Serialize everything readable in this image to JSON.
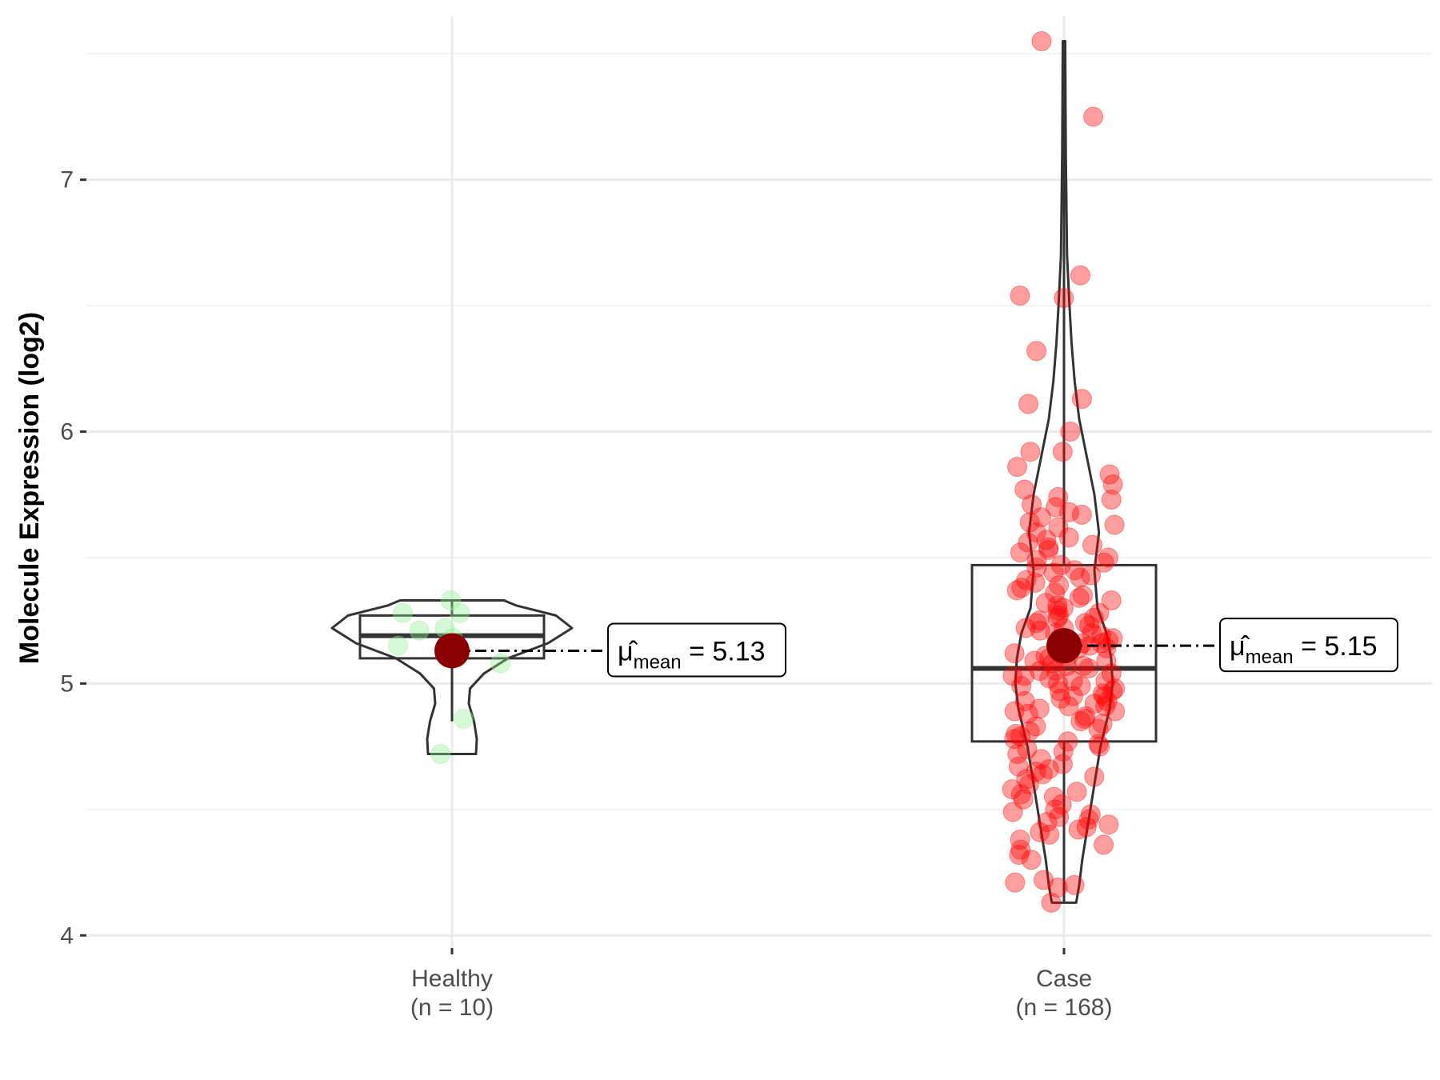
{
  "chart_data": {
    "type": "violin",
    "ylabel": "Molecule Expression (log2)",
    "ylim": [
      3.95,
      7.65
    ],
    "yticks": [
      4,
      5,
      6,
      7
    ],
    "ytick_labels": [
      "4",
      "5",
      "6",
      "7"
    ],
    "grid": true,
    "groups": [
      {
        "name": "Healthy",
        "n_label": "(n = 10)",
        "point_color": "#90EE90",
        "box": {
          "q1": 5.1,
          "median": 5.19,
          "q3": 5.27,
          "whisker_low": 4.85,
          "whisker_high": 5.33
        },
        "mean": 5.13,
        "mean_label": "5.13",
        "violin": {
          "y": [
            4.72,
            4.78,
            4.85,
            4.92,
            4.98,
            5.04,
            5.1,
            5.16,
            5.22,
            5.27,
            5.31,
            5.33
          ],
          "w": [
            0.6,
            0.62,
            0.55,
            0.42,
            0.45,
            0.8,
            1.4,
            2.4,
            3.0,
            2.6,
            1.6,
            1.3
          ]
        },
        "points": [
          5.33,
          5.28,
          5.28,
          5.21,
          5.22,
          5.18,
          5.15,
          5.08,
          4.86,
          4.72
        ]
      },
      {
        "name": "Case",
        "n_label": "(n = 168)",
        "point_color": "#FF0000",
        "box": {
          "q1": 4.77,
          "median": 5.06,
          "q3": 5.47,
          "whisker_low": 4.13,
          "whisker_high": 7.55
        },
        "mean": 5.15,
        "mean_label": "5.15",
        "violin": {
          "y": [
            4.13,
            4.2,
            4.3,
            4.45,
            4.6,
            4.75,
            4.9,
            5.0,
            5.1,
            5.2,
            5.3,
            5.45,
            5.6,
            5.75,
            5.9,
            6.05,
            6.2,
            6.35,
            6.5,
            6.7,
            6.9,
            7.1,
            7.3,
            7.55
          ],
          "w": [
            0.4,
            0.5,
            0.6,
            0.8,
            1.0,
            1.2,
            1.5,
            1.6,
            1.55,
            1.4,
            1.1,
            1.0,
            1.15,
            1.0,
            0.75,
            0.5,
            0.35,
            0.25,
            0.18,
            0.1,
            0.08,
            0.06,
            0.05,
            0.04
          ]
        },
        "points": [
          7.55,
          7.25,
          6.62,
          6.54,
          6.53,
          6.32,
          6.13,
          6.11,
          6.0,
          5.92,
          5.92,
          5.86,
          5.83,
          5.79,
          5.77,
          5.74,
          5.73,
          5.71,
          5.7,
          5.68,
          5.67,
          5.66,
          5.64,
          5.63,
          5.62,
          5.6,
          5.58,
          5.57,
          5.56,
          5.55,
          5.54,
          5.53,
          5.52,
          5.5,
          5.49,
          5.48,
          5.47,
          5.46,
          5.45,
          5.44,
          5.43,
          5.42,
          5.41,
          5.4,
          5.39,
          5.38,
          5.37,
          5.36,
          5.35,
          5.34,
          5.33,
          5.32,
          5.31,
          5.3,
          5.29,
          5.28,
          5.27,
          5.26,
          5.25,
          5.24,
          5.23,
          5.22,
          5.21,
          5.2,
          5.19,
          5.18,
          5.17,
          5.16,
          5.15,
          5.14,
          5.13,
          5.12,
          5.11,
          5.1,
          5.09,
          5.08,
          5.07,
          5.06,
          5.05,
          5.04,
          5.03,
          5.02,
          5.01,
          5.0,
          4.99,
          4.98,
          4.97,
          4.96,
          4.95,
          4.94,
          4.93,
          4.92,
          4.91,
          4.9,
          4.89,
          4.88,
          4.87,
          4.86,
          4.85,
          4.84,
          4.83,
          4.82,
          4.81,
          4.8,
          4.79,
          4.78,
          4.77,
          4.76,
          4.75,
          4.74,
          4.73,
          4.72,
          4.7,
          4.68,
          4.67,
          4.66,
          4.65,
          4.64,
          4.63,
          4.62,
          4.6,
          4.58,
          4.57,
          4.56,
          4.55,
          4.54,
          4.52,
          4.5,
          4.49,
          4.48,
          4.47,
          4.46,
          4.45,
          4.44,
          4.43,
          4.42,
          4.41,
          4.4,
          4.38,
          4.36,
          4.34,
          4.32,
          4.3,
          4.22,
          4.21,
          4.2,
          4.19,
          4.13,
          5.11,
          5.09,
          5.07,
          5.05,
          5.03,
          5.01,
          4.99,
          5.12,
          5.14,
          5.16,
          5.18,
          4.97,
          4.95,
          5.2,
          5.22,
          5.24,
          5.26,
          4.93,
          4.91,
          4.89
        ]
      }
    ]
  }
}
